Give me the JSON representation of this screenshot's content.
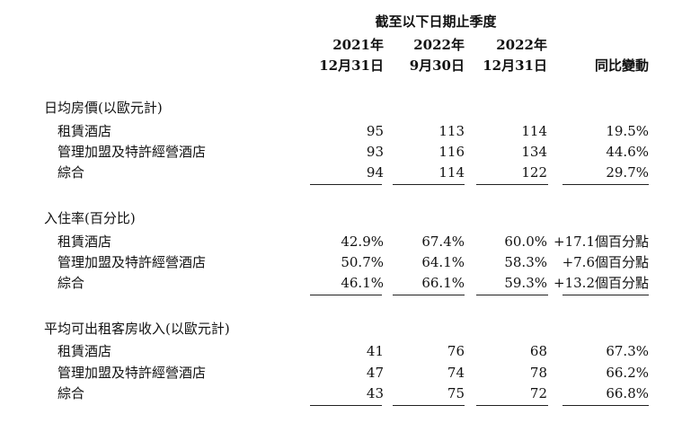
{
  "header": {
    "period_caption": "截至以下日期止季度",
    "columns": [
      {
        "line1": "2021年",
        "line2": "12月31日"
      },
      {
        "line1": "2022年",
        "line2": "9月30日"
      },
      {
        "line1": "2022年",
        "line2": "12月31日"
      }
    ],
    "change_label": "同比變動"
  },
  "sections": [
    {
      "title": "日均房價(以歐元計)",
      "rows": [
        {
          "label": "租賃酒店",
          "values": [
            "95",
            "113",
            "114"
          ],
          "change": "19.5%"
        },
        {
          "label": "管理加盟及特許經營酒店",
          "values": [
            "93",
            "116",
            "134"
          ],
          "change": "44.6%"
        },
        {
          "label": "綜合",
          "values": [
            "94",
            "114",
            "122"
          ],
          "change": "29.7%"
        }
      ]
    },
    {
      "title": "入住率(百分比)",
      "rows": [
        {
          "label": "租賃酒店",
          "values": [
            "42.9%",
            "67.4%",
            "60.0%"
          ],
          "change": "+17.1個百分點"
        },
        {
          "label": "管理加盟及特許經營酒店",
          "values": [
            "50.7%",
            "64.1%",
            "58.3%"
          ],
          "change": "+7.6個百分點"
        },
        {
          "label": "綜合",
          "values": [
            "46.1%",
            "66.1%",
            "59.3%"
          ],
          "change": "+13.2個百分點"
        }
      ]
    },
    {
      "title": "平均可出租客房收入(以歐元計)",
      "rows": [
        {
          "label": "租賃酒店",
          "values": [
            "41",
            "76",
            "68"
          ],
          "change": "67.3%"
        },
        {
          "label": "管理加盟及特許經營酒店",
          "values": [
            "47",
            "74",
            "78"
          ],
          "change": "66.2%"
        },
        {
          "label": "綜合",
          "values": [
            "43",
            "75",
            "72"
          ],
          "change": "66.8%"
        }
      ]
    }
  ]
}
